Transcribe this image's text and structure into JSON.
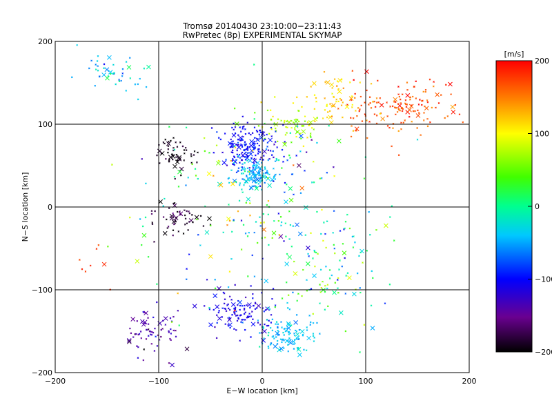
{
  "chart_data": {
    "type": "scatter",
    "title": "Tromsø 20140430 23:10:00−23:11:43",
    "subtitle": "RwPretec (8p) EXPERIMENTAL SKYMAP",
    "xlabel": "E−W location [km]",
    "ylabel": "N−S location [km]",
    "xlim": [
      -200,
      200
    ],
    "ylim": [
      -200,
      200
    ],
    "xticks": [
      -200,
      -100,
      0,
      100,
      200
    ],
    "yticks": [
      -200,
      -100,
      0,
      100,
      200
    ],
    "xtick_labels": [
      "−200",
      "−100",
      "0",
      "100",
      "200"
    ],
    "ytick_labels": [
      "−200",
      "−100",
      "0",
      "100",
      "200"
    ],
    "grid": true,
    "colorbar": {
      "label": "[m/s]",
      "range": [
        -200,
        200
      ],
      "ticks": [
        200,
        100,
        0,
        -100,
        -200
      ],
      "tick_labels": [
        "200",
        "100",
        "0",
        "−100",
        "−200"
      ],
      "colormap": "rainbow (black → purple → blue → cyan → green → yellow → red)"
    },
    "markers": {
      "small": "dot",
      "large": "x"
    },
    "clusters": [
      {
        "name": "north-east-red",
        "center": [
          135,
          120
        ],
        "spread": [
          55,
          30
        ],
        "count": 150,
        "value": 170,
        "value_spread": 25
      },
      {
        "name": "north-east-orange",
        "center": [
          70,
          130
        ],
        "spread": [
          35,
          25
        ],
        "count": 60,
        "value": 120,
        "value_spread": 25
      },
      {
        "name": "north-center-yellowgreen",
        "center": [
          30,
          95
        ],
        "spread": [
          25,
          20
        ],
        "count": 60,
        "value": 70,
        "value_spread": 30
      },
      {
        "name": "north-west-cyan",
        "center": [
          -145,
          160
        ],
        "spread": [
          30,
          20
        ],
        "count": 45,
        "value": -40,
        "value_spread": 50
      },
      {
        "name": "upper-center-blue",
        "center": [
          -15,
          75
        ],
        "spread": [
          25,
          25
        ],
        "count": 170,
        "value": -105,
        "value_spread": 25
      },
      {
        "name": "upper-center-cyan",
        "center": [
          -5,
          40
        ],
        "spread": [
          20,
          18
        ],
        "count": 130,
        "value": -45,
        "value_spread": 25
      },
      {
        "name": "upper-west-black",
        "center": [
          -85,
          65
        ],
        "spread": [
          18,
          18
        ],
        "count": 55,
        "value": -195,
        "value_spread": 10
      },
      {
        "name": "mid-west-black",
        "center": [
          -80,
          -15
        ],
        "spread": [
          25,
          20
        ],
        "count": 55,
        "value": -190,
        "value_spread": 15
      },
      {
        "name": "south-center-blue",
        "center": [
          -20,
          -130
        ],
        "spread": [
          30,
          25
        ],
        "count": 120,
        "value": -115,
        "value_spread": 25
      },
      {
        "name": "south-east-cyan",
        "center": [
          25,
          -155
        ],
        "spread": [
          25,
          18
        ],
        "count": 110,
        "value": -40,
        "value_spread": 20
      },
      {
        "name": "south-west-purple",
        "center": [
          -110,
          -150
        ],
        "spread": [
          30,
          25
        ],
        "count": 70,
        "value": -150,
        "value_spread": 30
      },
      {
        "name": "east-mixed",
        "center": [
          70,
          -80
        ],
        "spread": [
          50,
          60
        ],
        "count": 90,
        "value": 0,
        "value_spread": 90
      },
      {
        "name": "west-red-scatter",
        "center": [
          -165,
          -70
        ],
        "spread": [
          20,
          35
        ],
        "count": 8,
        "value": 180,
        "value_spread": 10
      },
      {
        "name": "background",
        "center": [
          0,
          0
        ],
        "spread": [
          110,
          110
        ],
        "count": 220,
        "value": 0,
        "value_spread": 130
      }
    ]
  }
}
